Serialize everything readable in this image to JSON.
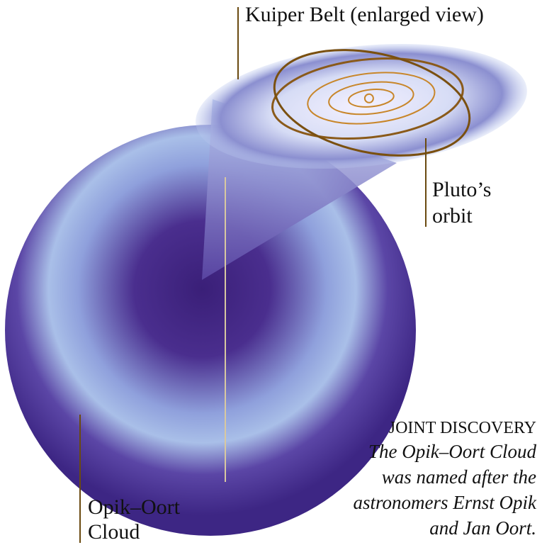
{
  "labels": {
    "kuiper_belt": "Kuiper Belt (enlarged view)",
    "pluto_orbit": [
      "Pluto’s",
      "orbit"
    ],
    "oort_cloud": [
      "Opik–Oort",
      "Cloud"
    ]
  },
  "caption": {
    "heading": "JOINT DISCOVERY",
    "lines": [
      "The Opik–Oort Cloud",
      "was named after the",
      "astronomers Ernst Opik",
      "and Jan Oort."
    ]
  }
}
